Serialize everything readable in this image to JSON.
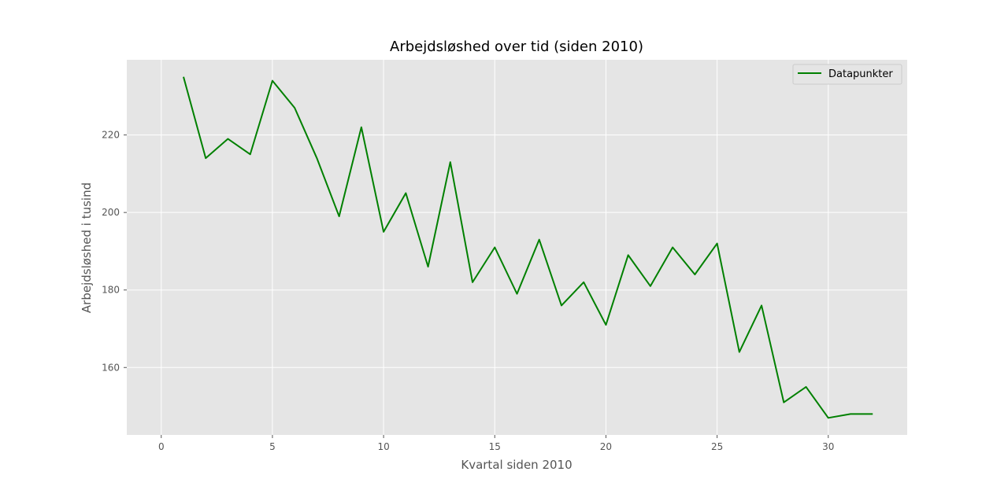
{
  "chart_data": {
    "type": "line",
    "title": "Arbejdsløshed over tid (siden 2010)",
    "xlabel": "Kvartal siden 2010",
    "ylabel": "Arbejdsløshed i tusind",
    "xlim": [
      -1.55,
      33.55
    ],
    "ylim": [
      142.6,
      239.4
    ],
    "xticks": [
      0,
      5,
      10,
      15,
      20,
      25,
      30
    ],
    "yticks": [
      160,
      180,
      200,
      220
    ],
    "grid": true,
    "legend_position": "top-right",
    "series": [
      {
        "name": "Datapunkter",
        "color": "#008000",
        "x": [
          1,
          2,
          3,
          4,
          5,
          6,
          7,
          8,
          9,
          10,
          11,
          12,
          13,
          14,
          15,
          16,
          17,
          18,
          19,
          20,
          21,
          22,
          23,
          24,
          25,
          26,
          27,
          28,
          29,
          30,
          31,
          32
        ],
        "y": [
          235,
          214,
          219,
          215,
          234,
          227,
          214,
          199,
          222,
          195,
          205,
          186,
          213,
          182,
          191,
          179,
          193,
          176,
          182,
          171,
          189,
          181,
          191,
          184,
          192,
          164,
          176,
          151,
          155,
          147,
          148,
          148
        ]
      }
    ]
  }
}
